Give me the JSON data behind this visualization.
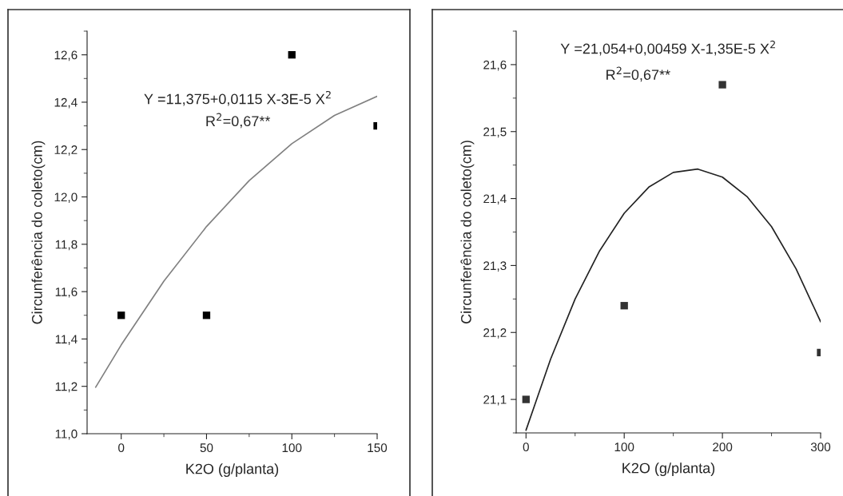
{
  "chart_data": [
    {
      "type": "scatter",
      "xlabel": "K2O (g/planta)",
      "ylabel": "Circunferência do coleto(cm)",
      "xlim": [
        -20,
        150
      ],
      "xticks": [
        0,
        50,
        100,
        150
      ],
      "ylim": [
        11.0,
        12.7
      ],
      "yticks": [
        {
          "value": 11.0,
          "label": "11,0"
        },
        {
          "value": 11.2,
          "label": "11,2"
        },
        {
          "value": 11.4,
          "label": "11,4"
        },
        {
          "value": 11.6,
          "label": "11,6"
        },
        {
          "value": 11.8,
          "label": "11,8"
        },
        {
          "value": 12.0,
          "label": "12,0"
        },
        {
          "value": 12.2,
          "label": "12,2"
        },
        {
          "value": 12.4,
          "label": "12,4"
        },
        {
          "value": 12.6,
          "label": "12,6"
        }
      ],
      "grid": false,
      "marker": "square",
      "annotations": [
        "Y =11,375+0,0115 X-3E-5 X$^{2}$",
        "R$^{2}$=0,67**"
      ],
      "series": [
        {
          "type": "scatter",
          "color": "#000000",
          "x": [
            0,
            50,
            100,
            150
          ],
          "values": [
            11.5,
            11.5,
            12.6,
            12.3
          ]
        },
        {
          "type": "line",
          "color": "#808080",
          "marker": "none",
          "x": [
            -15,
            0,
            25,
            50,
            75,
            100,
            125,
            150
          ],
          "values": [
            11.196,
            11.375,
            11.644,
            11.875,
            12.069,
            12.225,
            12.344,
            12.425
          ]
        }
      ]
    },
    {
      "type": "scatter",
      "xlabel": "K2O (g/planta)",
      "ylabel": "Circunferência do coleto(cm)",
      "xlim": [
        -10,
        300
      ],
      "xticks": [
        0,
        100,
        200,
        300
      ],
      "ylim": [
        21.05,
        21.65
      ],
      "yticks": [
        {
          "value": 21.1,
          "label": "21,1"
        },
        {
          "value": 21.2,
          "label": "21,2"
        },
        {
          "value": 21.3,
          "label": "21,3"
        },
        {
          "value": 21.4,
          "label": "21,4"
        },
        {
          "value": 21.5,
          "label": "21,5"
        },
        {
          "value": 21.6,
          "label": "21,6"
        }
      ],
      "grid": false,
      "marker": "square",
      "annotations": [
        "Y =21,054+0,00459 X-1,35E-5 X$^{2}$",
        "R$^{2}$=0,67**"
      ],
      "series": [
        {
          "type": "scatter",
          "color": "#333333",
          "x": [
            0,
            100,
            200,
            300
          ],
          "values": [
            21.1,
            21.24,
            21.57,
            21.17
          ]
        },
        {
          "type": "line",
          "color": "#222222",
          "marker": "none",
          "x": [
            0,
            25,
            50,
            75,
            100,
            125,
            150,
            175,
            200,
            225,
            250,
            275,
            300
          ],
          "values": [
            21.054,
            21.16,
            21.25,
            21.322,
            21.378,
            21.417,
            21.439,
            21.444,
            21.432,
            21.403,
            21.358,
            21.295,
            21.216
          ]
        }
      ]
    }
  ]
}
